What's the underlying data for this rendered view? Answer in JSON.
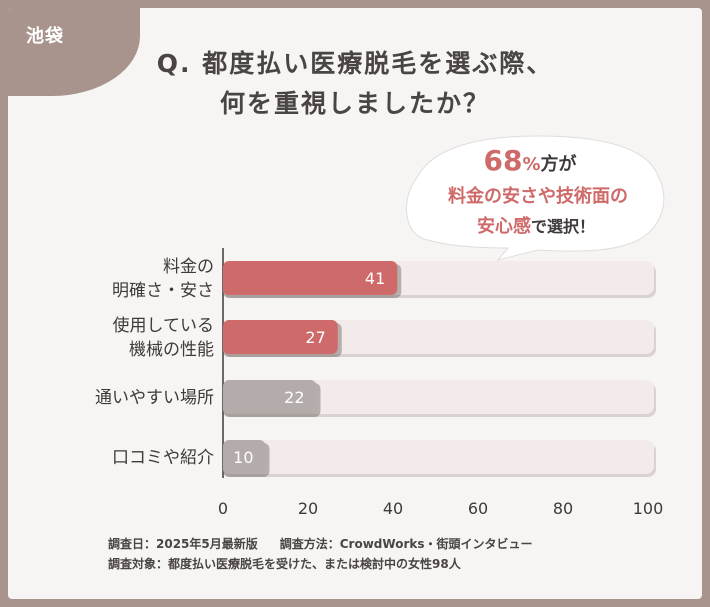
{
  "location_tag": "池袋",
  "title_lines": [
    "Q. 都度払い医療脱毛を選ぶ際、",
    "何を重視しましたか？"
  ],
  "callout": {
    "number": "68",
    "percent": "%",
    "line1_suffix": "方が",
    "line2": "料金の安さや技術面の",
    "line3_emph": "安心感",
    "line3_suffix": "で選択！"
  },
  "colors": {
    "accent": "#cf6a6a",
    "gray": "#b3acaa",
    "track": "#f3eaea",
    "background": "#a8948d"
  },
  "chart_data": {
    "type": "bar",
    "orientation": "horizontal",
    "categories": [
      [
        "料金の",
        "明確さ・安さ"
      ],
      [
        "使用している",
        "機械の性能"
      ],
      [
        "通いやすい場所"
      ],
      [
        "口コミや紹介"
      ]
    ],
    "values": [
      41,
      27,
      22,
      10
    ],
    "highlighted": [
      true,
      true,
      false,
      false
    ],
    "xlim": [
      0,
      100
    ],
    "xticks": [
      0,
      20,
      40,
      60,
      80,
      100
    ],
    "xlabel": "",
    "ylabel": "",
    "grid": false
  },
  "footer": {
    "date": "調査日：2025年5月最新版",
    "method": "調査方法：CrowdWorks・街頭インタビュー",
    "target": "調査対象：都度払い医療脱毛を受けた、または検討中の女性98人"
  }
}
